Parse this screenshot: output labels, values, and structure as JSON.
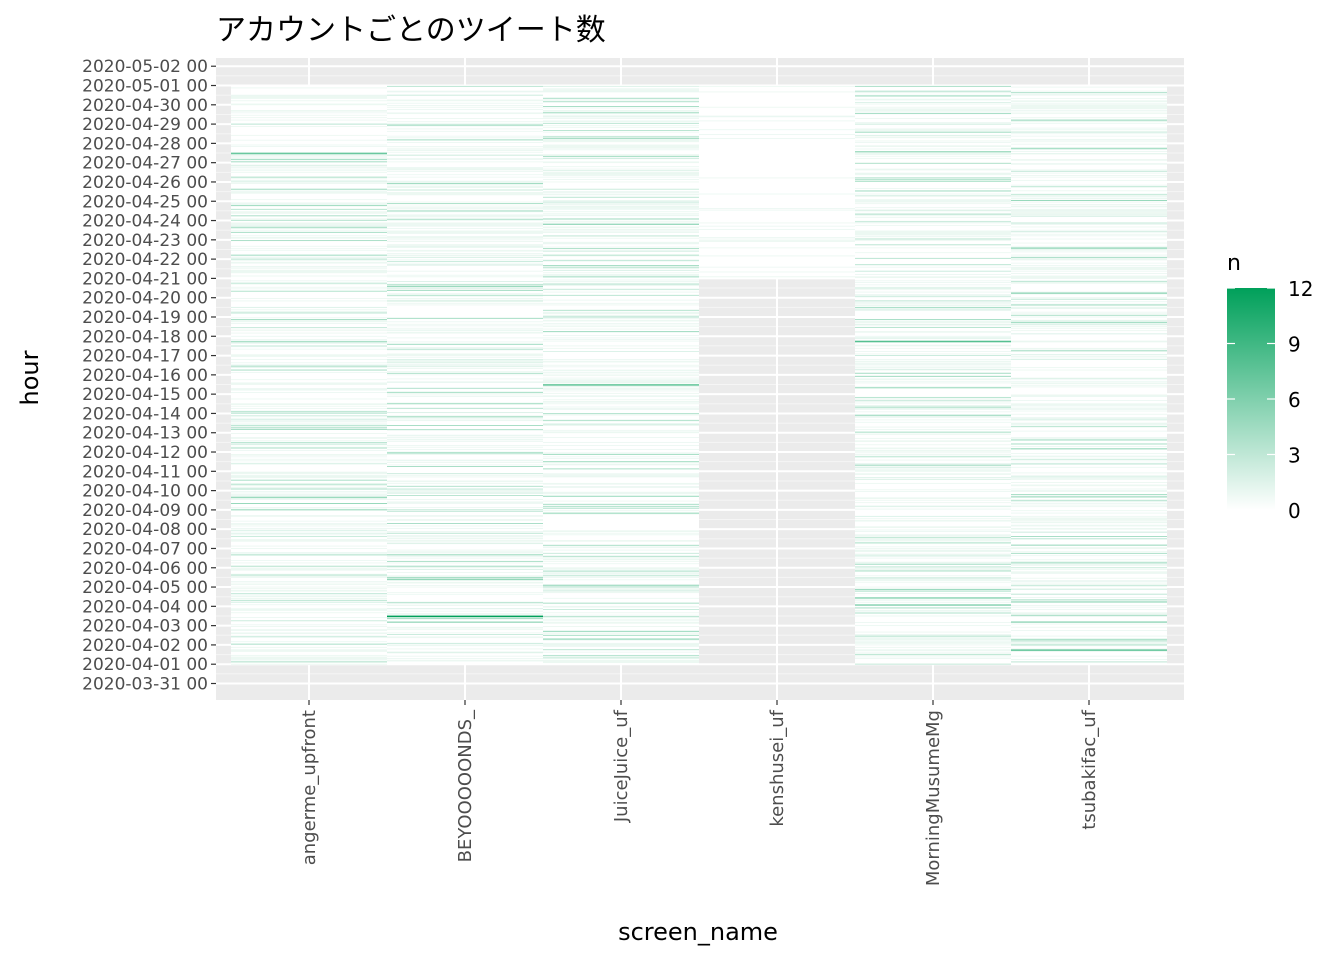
{
  "chart_data": {
    "type": "heatmap",
    "title": "アカウントごとのツイート数",
    "xlabel": "screen_name",
    "ylabel": "hour",
    "categories": [
      "angerme_upfront",
      "BEYOOOOONDS_",
      "JuiceJuice_uf",
      "kenshusei_uf",
      "MorningMusumeMg",
      "tsubakifac_uf"
    ],
    "y_tick_labels": [
      "2020-03-31 00",
      "2020-04-01 00",
      "2020-04-02 00",
      "2020-04-03 00",
      "2020-04-04 00",
      "2020-04-05 00",
      "2020-04-06 00",
      "2020-04-07 00",
      "2020-04-08 00",
      "2020-04-09 00",
      "2020-04-10 00",
      "2020-04-11 00",
      "2020-04-12 00",
      "2020-04-13 00",
      "2020-04-14 00",
      "2020-04-15 00",
      "2020-04-16 00",
      "2020-04-17 00",
      "2020-04-18 00",
      "2020-04-19 00",
      "2020-04-20 00",
      "2020-04-21 00",
      "2020-04-22 00",
      "2020-04-23 00",
      "2020-04-24 00",
      "2020-04-25 00",
      "2020-04-26 00",
      "2020-04-27 00",
      "2020-04-28 00",
      "2020-04-29 00",
      "2020-04-30 00",
      "2020-05-01 00",
      "2020-05-02 00"
    ],
    "time_range": [
      "2020-04-01 00",
      "2020-04-30 23"
    ],
    "account_active_range": [
      [
        "2020-04-01 00",
        "2020-04-30 23"
      ],
      [
        "2020-04-01 00",
        "2020-04-30 23"
      ],
      [
        "2020-04-01 00",
        "2020-04-30 23"
      ],
      [
        "2020-04-21 00",
        "2020-04-30 23"
      ],
      [
        "2020-04-01 00",
        "2020-04-30 23"
      ],
      [
        "2020-04-01 00",
        "2020-04-30 23"
      ]
    ],
    "peak_counts": [
      {
        "screen_name": "BEYOOOOONDS_",
        "hour": "2020-04-03 12",
        "n": 12
      },
      {
        "screen_name": "MorningMusumeMg",
        "hour": "2020-04-17 18",
        "n": 8
      },
      {
        "screen_name": "angerme_upfront",
        "hour": "2020-04-27 12",
        "n": 7
      },
      {
        "screen_name": "tsubakifac_uf",
        "hour": "2020-04-01 18",
        "n": 7
      },
      {
        "screen_name": "JuiceJuice_uf",
        "hour": "2020-04-15 12",
        "n": 7
      }
    ],
    "fill_scale": {
      "name": "n",
      "min": 0,
      "max": 12,
      "ticks": [
        "0",
        "3",
        "6",
        "9",
        "12"
      ],
      "low_color": "#ffffff",
      "high_color": "#00a05a"
    },
    "panel_background": "#ebebeb",
    "grid": true,
    "legend_position": "right"
  }
}
